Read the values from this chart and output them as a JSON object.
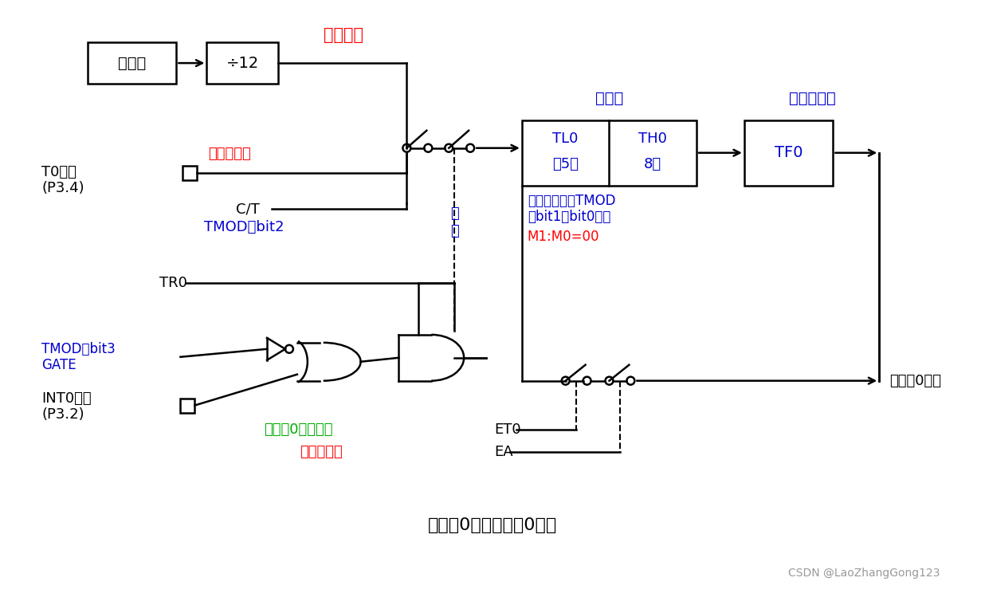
{
  "bg_color": "#ffffff",
  "black": "#000000",
  "blue": "#0000CD",
  "red": "#FF0000",
  "green": "#00AA00",
  "gray": "#999999",
  "title": "定时器0工作在模式0框图",
  "watermark": "CSDN @LaoZhangGong123",
  "osc_label": "振荡器",
  "div_label": "÷12",
  "sysclk_label": "系统时钟",
  "cntclk_label": "计数器时钟",
  "t0pin_label1": "T0引脚",
  "t0pin_label2": "(P3.4)",
  "ct_label": "C/T",
  "tmod_bit2": "TMOD的bit2",
  "qidong1": "启",
  "qidong2": "动",
  "jishuqi": "计数器",
  "tl0": "TL0",
  "di5wei": "低5位",
  "th0": "TH0",
  "wei8": "8位",
  "yichu": "溢出标志位",
  "tf0": "TF0",
  "mode_text1": "工作方式通过TMOD",
  "mode_text2": "的bit1和bit0选择",
  "mode_text3": "M1:M0=00",
  "tr0": "TR0",
  "tmod_bit3": "TMOD的bit3",
  "gate": "GATE",
  "int0pin1": "INT0引脚",
  "int0pin2": "(P3.2)",
  "et0_text": "定时器0中断使能",
  "et0": "ET0",
  "ea_text": "总中断使能",
  "ea": "EA",
  "interrupt": "定时器0中断"
}
